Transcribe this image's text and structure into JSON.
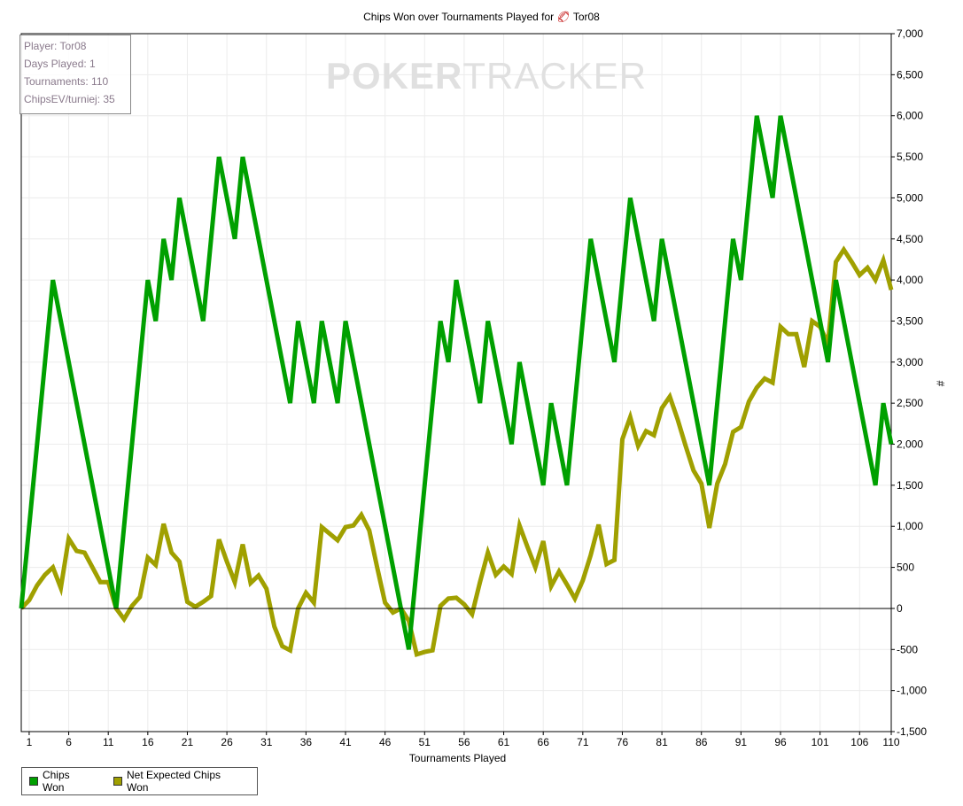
{
  "chart_data": {
    "type": "line",
    "title": "Chips Won over Tournaments Played for Tor08",
    "title_prefix": "Chips Won over Tournaments Played for",
    "player": "Tor08",
    "xlabel": "Tournaments Played",
    "ylabel": "#",
    "xlim": [
      0,
      110
    ],
    "ylim": [
      -1500,
      7000
    ],
    "x_ticks": [
      1,
      6,
      11,
      16,
      21,
      26,
      31,
      36,
      41,
      46,
      51,
      56,
      61,
      66,
      71,
      76,
      81,
      86,
      91,
      96,
      101,
      106,
      110
    ],
    "y_ticks": [
      "-1,500",
      "-1,000",
      "-500",
      "0",
      "500",
      "1,000",
      "1,500",
      "2,000",
      "2,500",
      "3,000",
      "3,500",
      "4,000",
      "4,500",
      "5,000",
      "5,500",
      "6,000",
      "6,500",
      "7,000"
    ],
    "grid": true,
    "legend_position": "bottom-left",
    "series": [
      {
        "name": "Chips Won",
        "color": "#00a000",
        "points": [
          [
            0,
            0
          ],
          [
            4,
            4000
          ],
          [
            12,
            0
          ],
          [
            16,
            4000
          ],
          [
            17,
            3500
          ],
          [
            18,
            4500
          ],
          [
            19,
            4000
          ],
          [
            20,
            5000
          ],
          [
            23,
            3500
          ],
          [
            25,
            5500
          ],
          [
            27,
            4500
          ],
          [
            28,
            5500
          ],
          [
            34,
            2500
          ],
          [
            35,
            3500
          ],
          [
            37,
            2500
          ],
          [
            38,
            3500
          ],
          [
            40,
            2500
          ],
          [
            41,
            3500
          ],
          [
            49,
            -500
          ],
          [
            53,
            3500
          ],
          [
            54,
            3000
          ],
          [
            55,
            4000
          ],
          [
            58,
            2500
          ],
          [
            59,
            3500
          ],
          [
            62,
            2000
          ],
          [
            63,
            3000
          ],
          [
            66,
            1500
          ],
          [
            67,
            2500
          ],
          [
            69,
            1500
          ],
          [
            72,
            4500
          ],
          [
            75,
            3000
          ],
          [
            77,
            5000
          ],
          [
            80,
            3500
          ],
          [
            81,
            4500
          ],
          [
            87,
            1500
          ],
          [
            90,
            4500
          ],
          [
            91,
            4000
          ],
          [
            93,
            6000
          ],
          [
            95,
            5000
          ],
          [
            96,
            6000
          ],
          [
            102,
            3000
          ],
          [
            103,
            4000
          ],
          [
            108,
            1500
          ],
          [
            109,
            2500
          ],
          [
            110,
            2000
          ]
        ]
      },
      {
        "name": "Net Expected Chips Won",
        "color": "#a0a000",
        "values": [
          0,
          100,
          280,
          410,
          500,
          250,
          850,
          700,
          680,
          500,
          320,
          320,
          0,
          -130,
          30,
          140,
          620,
          530,
          1030,
          680,
          570,
          80,
          20,
          80,
          150,
          840,
          570,
          320,
          780,
          310,
          400,
          240,
          -220,
          -460,
          -510,
          0,
          190,
          70,
          990,
          910,
          830,
          990,
          1010,
          1140,
          950,
          500,
          70,
          -50,
          0,
          -150,
          -560,
          -530,
          -510,
          30,
          120,
          130,
          50,
          -70,
          320,
          680,
          410,
          510,
          420,
          1010,
          750,
          500,
          820,
          270,
          450,
          290,
          120,
          340,
          650,
          1020,
          540,
          590,
          2060,
          2330,
          1980,
          2160,
          2110,
          2440,
          2580,
          2300,
          1980,
          1680,
          1520,
          980,
          1520,
          1760,
          2150,
          2210,
          2520,
          2690,
          2800,
          2750,
          3430,
          3340,
          3340,
          2940,
          3500,
          3430,
          3230,
          4220,
          4370,
          4220,
          4060,
          4150,
          4000,
          4240,
          3880
        ]
      }
    ]
  },
  "info": {
    "player": "Player: Tor08",
    "days": "Days Played: 1",
    "tournaments": "Tournaments: 110",
    "chipsev": "ChipsEV/turniej: 35"
  },
  "watermark": {
    "bold": "POKER",
    "light": "TRACKER"
  }
}
